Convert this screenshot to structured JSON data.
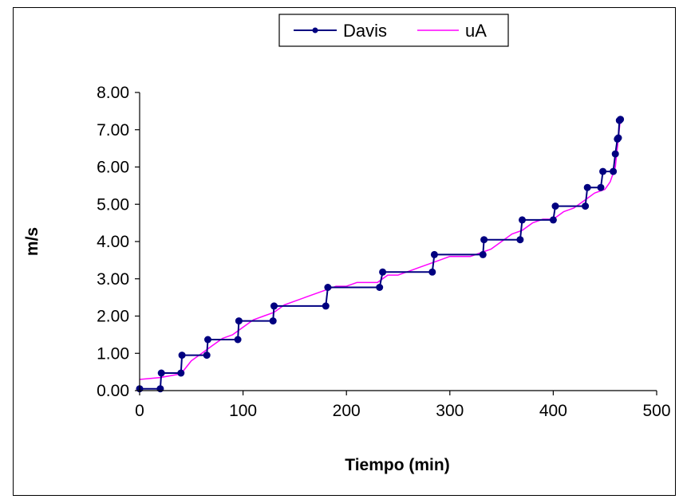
{
  "chart_data": {
    "type": "line",
    "title": "",
    "xlabel": "Tiempo (min)",
    "ylabel": "m/s",
    "xlim": [
      0,
      500
    ],
    "ylim": [
      0,
      8
    ],
    "x_ticks": [
      "0",
      "100",
      "200",
      "300",
      "400",
      "500"
    ],
    "y_ticks": [
      "0.00",
      "1.00",
      "2.00",
      "3.00",
      "4.00",
      "5.00",
      "6.00",
      "7.00",
      "8.00"
    ],
    "grid": false,
    "legend_position": "top-center",
    "series": [
      {
        "name": "Davis",
        "color": "#000080",
        "marker": "circle",
        "x": [
          0,
          20,
          21,
          40,
          41,
          65,
          66,
          95,
          96,
          129,
          130,
          180,
          182,
          232,
          235,
          283,
          285,
          332,
          333,
          368,
          370,
          400,
          402,
          431,
          433,
          446,
          448,
          458,
          460,
          462,
          463,
          464,
          465
        ],
        "y": [
          0.05,
          0.05,
          0.47,
          0.47,
          0.95,
          0.95,
          1.37,
          1.37,
          1.87,
          1.87,
          2.27,
          2.27,
          2.77,
          2.77,
          3.18,
          3.18,
          3.65,
          3.65,
          4.05,
          4.05,
          4.58,
          4.58,
          4.95,
          4.95,
          5.45,
          5.45,
          5.88,
          5.88,
          6.35,
          6.75,
          6.78,
          7.25,
          7.28
        ]
      },
      {
        "name": "uA",
        "color": "#FF00FF",
        "marker": "none",
        "x": [
          0,
          20,
          40,
          50,
          60,
          70,
          80,
          90,
          100,
          110,
          120,
          130,
          140,
          150,
          160,
          170,
          180,
          190,
          200,
          210,
          220,
          230,
          240,
          250,
          260,
          270,
          280,
          290,
          300,
          310,
          320,
          330,
          340,
          350,
          360,
          370,
          380,
          390,
          400,
          410,
          420,
          430,
          440,
          450,
          455,
          460,
          465
        ],
        "y": [
          0.3,
          0.35,
          0.45,
          0.8,
          1.0,
          1.2,
          1.4,
          1.5,
          1.7,
          1.9,
          2.0,
          2.1,
          2.3,
          2.4,
          2.5,
          2.6,
          2.7,
          2.8,
          2.8,
          2.9,
          2.9,
          2.9,
          3.1,
          3.1,
          3.2,
          3.3,
          3.4,
          3.5,
          3.6,
          3.6,
          3.6,
          3.7,
          3.8,
          4.0,
          4.2,
          4.3,
          4.5,
          4.6,
          4.6,
          4.8,
          4.9,
          5.1,
          5.3,
          5.4,
          5.6,
          6.0,
          7.3
        ]
      }
    ]
  }
}
